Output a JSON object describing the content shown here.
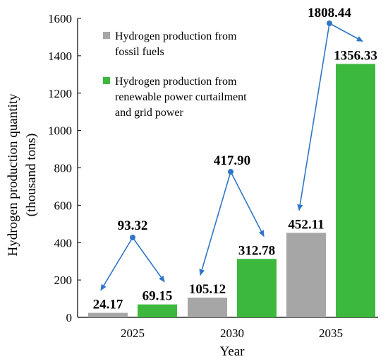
{
  "chart_data": {
    "type": "bar",
    "categories": [
      "2025",
      "2030",
      "2035"
    ],
    "series": [
      {
        "name": "Hydrogen production from fossil fuels",
        "legend_lines": [
          "Hydrogen production from",
          "fossil fuels"
        ],
        "color": "#a6a6a6",
        "values": [
          24.17,
          105.12,
          452.11
        ],
        "value_labels": [
          "24.17",
          "105.12",
          "452.11"
        ]
      },
      {
        "name": "Hydrogen production from renewable power curtailment and grid power",
        "legend_lines": [
          "Hydrogen production from",
          "renewable power curtailment",
          "and grid power"
        ],
        "color": "#3cb93c",
        "values": [
          69.15,
          312.78,
          1356.33
        ],
        "value_labels": [
          "69.15",
          "312.78",
          "1356.33"
        ]
      }
    ],
    "totals": [
      93.32,
      417.9,
      1808.44
    ],
    "total_labels": [
      "93.32",
      "417.90",
      "1808.44"
    ],
    "arrow_color": "#2f76c8",
    "ylabel_lines": [
      "Hydrogen production quantity",
      "(thousand tons)"
    ],
    "xlabel": "Year",
    "ylim": [
      0,
      1600
    ],
    "yticks": [
      0,
      200,
      400,
      600,
      800,
      1000,
      1200,
      1400,
      1600
    ],
    "ytick_labels": [
      "0",
      "200",
      "400",
      "600",
      "800",
      "1000",
      "1200",
      "1400",
      "1600"
    ],
    "grid": false,
    "legend_position": "top-left"
  }
}
